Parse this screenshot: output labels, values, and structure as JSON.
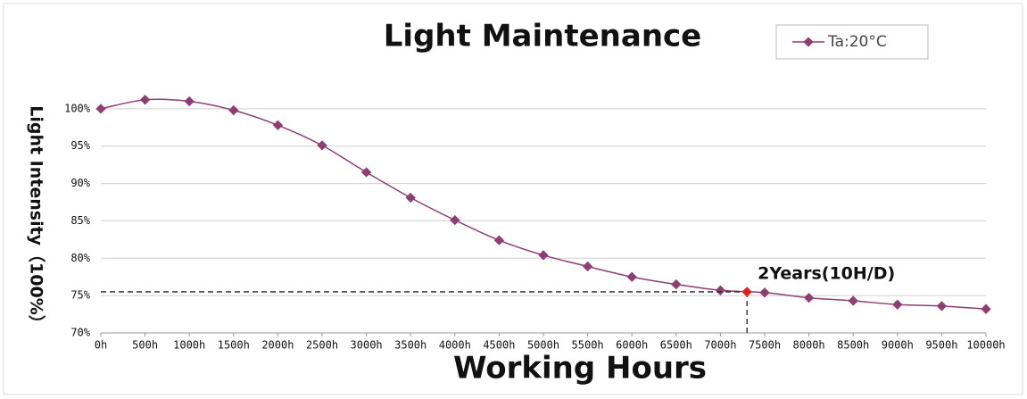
{
  "chart_data": {
    "type": "line",
    "title": "Light Maintenance",
    "x_label": "Working Hours",
    "y_label": "Light Intensity（100%）",
    "x": [
      0,
      500,
      1000,
      1500,
      2000,
      2500,
      3000,
      3500,
      4000,
      4500,
      5000,
      5500,
      6000,
      6500,
      7000,
      7500,
      8000,
      8500,
      9000,
      9500,
      10000
    ],
    "series": [
      {
        "name": "Ta:20°C",
        "color": "#8e3e72",
        "values": [
          100,
          101.2,
          101.0,
          99.8,
          97.8,
          95.1,
          91.5,
          88.1,
          85.1,
          82.4,
          80.4,
          78.9,
          77.5,
          76.5,
          75.7,
          75.4,
          74.7,
          74.3,
          73.8,
          73.6,
          73.2
        ]
      }
    ],
    "xlim": [
      0,
      10000
    ],
    "ylim": [
      70,
      105
    ],
    "xticks": [
      {
        "value": 0,
        "label": "0h"
      },
      {
        "value": 500,
        "label": "500h"
      },
      {
        "value": 1000,
        "label": "1000h"
      },
      {
        "value": 1500,
        "label": "1500h"
      },
      {
        "value": 2000,
        "label": "2000h"
      },
      {
        "value": 2500,
        "label": "2500h"
      },
      {
        "value": 3000,
        "label": "3000h"
      },
      {
        "value": 3500,
        "label": "3500h"
      },
      {
        "value": 4000,
        "label": "4000h"
      },
      {
        "value": 4500,
        "label": "4500h"
      },
      {
        "value": 5000,
        "label": "5000h"
      },
      {
        "value": 5500,
        "label": "5500h"
      },
      {
        "value": 6000,
        "label": "6000h"
      },
      {
        "value": 6500,
        "label": "6500h"
      },
      {
        "value": 7000,
        "label": "7000h"
      },
      {
        "value": 7500,
        "label": "7500h"
      },
      {
        "value": 8000,
        "label": "8000h"
      },
      {
        "value": 8500,
        "label": "8500h"
      },
      {
        "value": 9000,
        "label": "9000h"
      },
      {
        "value": 9500,
        "label": "9500h"
      },
      {
        "value": 10000,
        "label": "10000h"
      }
    ],
    "yticks": [
      {
        "value": 70,
        "label": "70%"
      },
      {
        "value": 75,
        "label": "75%"
      },
      {
        "value": 80,
        "label": "80%"
      },
      {
        "value": 85,
        "label": "85%"
      },
      {
        "value": 90,
        "label": "90%"
      },
      {
        "value": 95,
        "label": "95%"
      },
      {
        "value": 100,
        "label": "100%"
      }
    ],
    "grid": true,
    "legend": "top-right",
    "annotation": {
      "text": "2Years(10H/D)",
      "x": 7300,
      "y": 75.5,
      "color": "#e02020"
    }
  }
}
